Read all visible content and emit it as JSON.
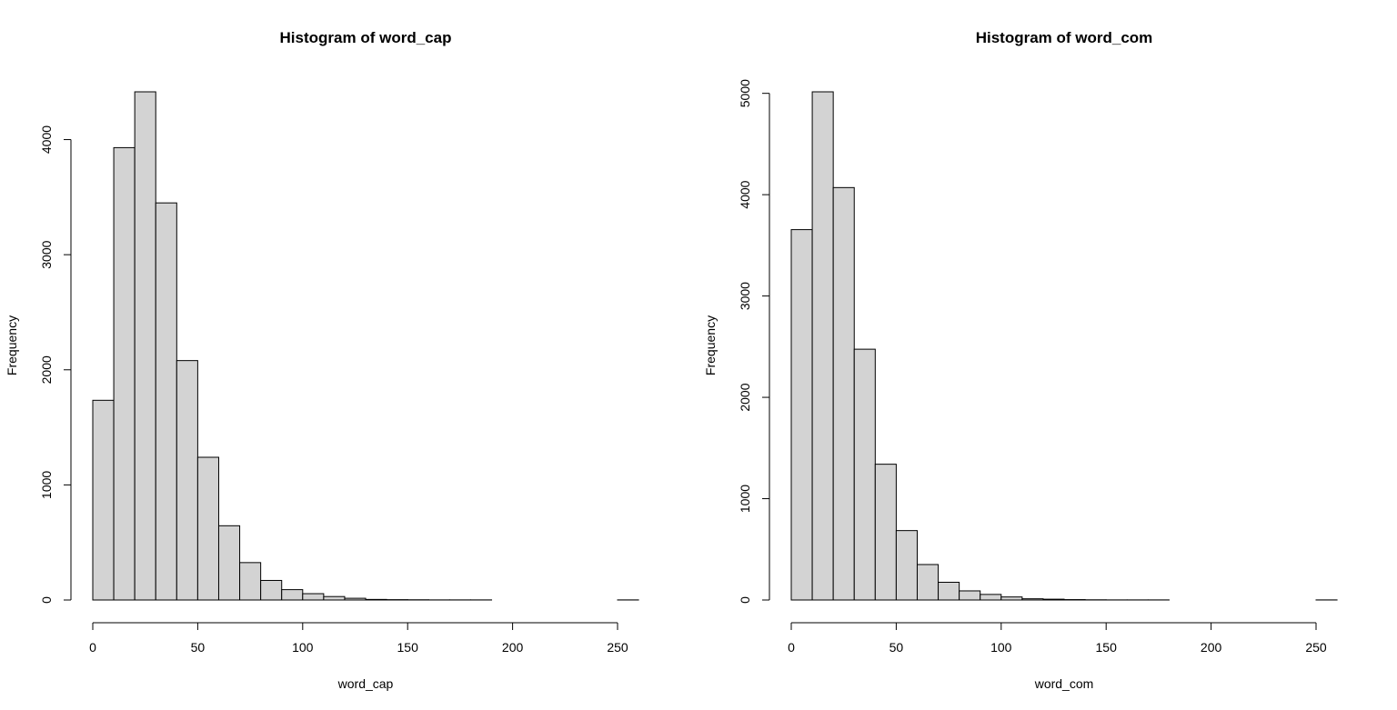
{
  "chart_data": [
    {
      "type": "bar",
      "title": "Histogram of word_cap",
      "xlabel": "word_cap",
      "ylabel": "Frequency",
      "bin_width": 10,
      "bins": [
        {
          "start": 0,
          "end": 10,
          "count": 1735
        },
        {
          "start": 10,
          "end": 20,
          "count": 3930
        },
        {
          "start": 20,
          "end": 30,
          "count": 4415
        },
        {
          "start": 30,
          "end": 40,
          "count": 3450
        },
        {
          "start": 40,
          "end": 50,
          "count": 2080
        },
        {
          "start": 50,
          "end": 60,
          "count": 1240
        },
        {
          "start": 60,
          "end": 70,
          "count": 645
        },
        {
          "start": 70,
          "end": 80,
          "count": 325
        },
        {
          "start": 80,
          "end": 90,
          "count": 170
        },
        {
          "start": 90,
          "end": 100,
          "count": 90
        },
        {
          "start": 100,
          "end": 110,
          "count": 55
        },
        {
          "start": 110,
          "end": 120,
          "count": 30
        },
        {
          "start": 120,
          "end": 130,
          "count": 15
        },
        {
          "start": 130,
          "end": 140,
          "count": 5
        },
        {
          "start": 140,
          "end": 150,
          "count": 3
        },
        {
          "start": 150,
          "end": 160,
          "count": 2
        },
        {
          "start": 160,
          "end": 170,
          "count": 1
        },
        {
          "start": 170,
          "end": 180,
          "count": 1
        },
        {
          "start": 180,
          "end": 190,
          "count": 1
        },
        {
          "start": 190,
          "end": 200,
          "count": 0
        },
        {
          "start": 200,
          "end": 210,
          "count": 0
        },
        {
          "start": 210,
          "end": 220,
          "count": 0
        },
        {
          "start": 220,
          "end": 230,
          "count": 0
        },
        {
          "start": 230,
          "end": 240,
          "count": 0
        },
        {
          "start": 240,
          "end": 250,
          "count": 0
        },
        {
          "start": 250,
          "end": 260,
          "count": 1
        }
      ],
      "xlim": [
        0,
        260
      ],
      "ylim": [
        0,
        4415
      ],
      "xticks": [
        0,
        50,
        100,
        150,
        200,
        250
      ],
      "yticks": [
        0,
        1000,
        2000,
        3000,
        4000
      ],
      "grid": false,
      "bar_fill": "#d3d3d3",
      "bar_stroke": "#000000"
    },
    {
      "type": "bar",
      "title": "Histogram of word_com",
      "xlabel": "word_com",
      "ylabel": "Frequency",
      "bin_width": 10,
      "bins": [
        {
          "start": 0,
          "end": 10,
          "count": 3655
        },
        {
          "start": 10,
          "end": 20,
          "count": 5015
        },
        {
          "start": 20,
          "end": 30,
          "count": 4070
        },
        {
          "start": 30,
          "end": 40,
          "count": 2475
        },
        {
          "start": 40,
          "end": 50,
          "count": 1340
        },
        {
          "start": 50,
          "end": 60,
          "count": 685
        },
        {
          "start": 60,
          "end": 70,
          "count": 350
        },
        {
          "start": 70,
          "end": 80,
          "count": 175
        },
        {
          "start": 80,
          "end": 90,
          "count": 90
        },
        {
          "start": 90,
          "end": 100,
          "count": 55
        },
        {
          "start": 100,
          "end": 110,
          "count": 30
        },
        {
          "start": 110,
          "end": 120,
          "count": 12
        },
        {
          "start": 120,
          "end": 130,
          "count": 8
        },
        {
          "start": 130,
          "end": 140,
          "count": 4
        },
        {
          "start": 140,
          "end": 150,
          "count": 2
        },
        {
          "start": 150,
          "end": 160,
          "count": 1
        },
        {
          "start": 160,
          "end": 170,
          "count": 1
        },
        {
          "start": 170,
          "end": 180,
          "count": 1
        },
        {
          "start": 180,
          "end": 190,
          "count": 0
        },
        {
          "start": 190,
          "end": 200,
          "count": 0
        },
        {
          "start": 200,
          "end": 210,
          "count": 0
        },
        {
          "start": 210,
          "end": 220,
          "count": 0
        },
        {
          "start": 220,
          "end": 230,
          "count": 0
        },
        {
          "start": 230,
          "end": 240,
          "count": 0
        },
        {
          "start": 240,
          "end": 250,
          "count": 0
        },
        {
          "start": 250,
          "end": 260,
          "count": 1
        }
      ],
      "xlim": [
        0,
        260
      ],
      "ylim": [
        0,
        5015
      ],
      "xticks": [
        0,
        50,
        100,
        150,
        200,
        250
      ],
      "yticks": [
        0,
        1000,
        2000,
        3000,
        4000,
        5000
      ],
      "grid": false,
      "bar_fill": "#d3d3d3",
      "bar_stroke": "#000000"
    }
  ]
}
